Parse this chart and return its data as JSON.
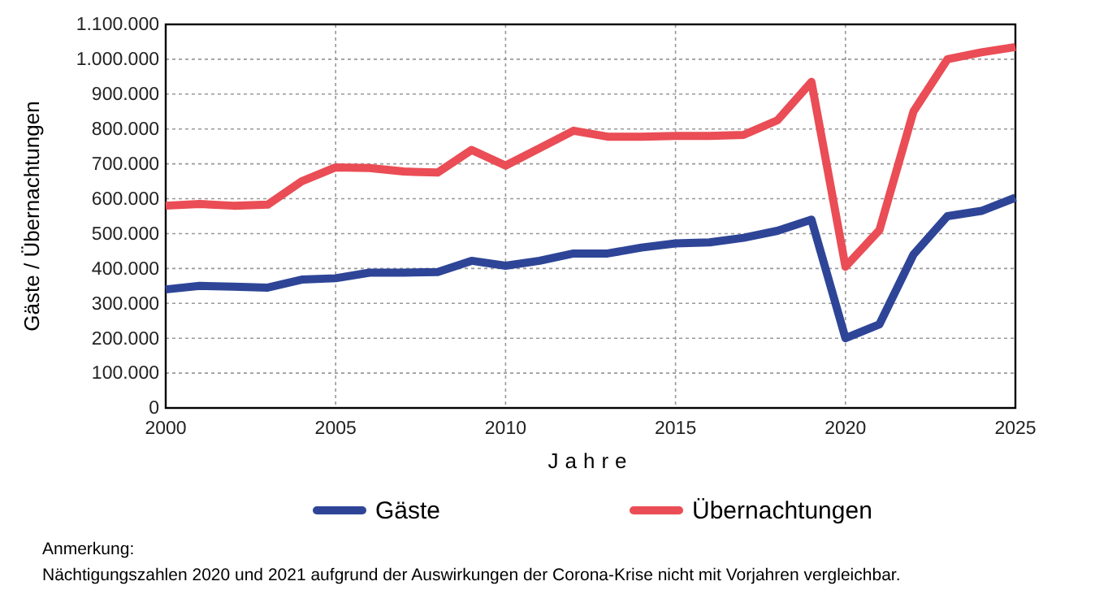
{
  "chart_data": {
    "type": "line",
    "xlabel": "Jahre",
    "ylabel": "Gäste / Übernachtungen",
    "x": [
      2000,
      2001,
      2002,
      2003,
      2004,
      2005,
      2006,
      2007,
      2008,
      2009,
      2010,
      2011,
      2012,
      2013,
      2014,
      2015,
      2016,
      2017,
      2018,
      2019,
      2020,
      2021,
      2022,
      2023,
      2024,
      2025
    ],
    "series": [
      {
        "name": "Gäste",
        "color": "#2e4597",
        "values": [
          340000,
          350000,
          348000,
          345000,
          368000,
          372000,
          388000,
          388000,
          390000,
          422000,
          408000,
          422000,
          443000,
          443000,
          460000,
          472000,
          475000,
          488000,
          508000,
          540000,
          200000,
          240000,
          440000,
          550000,
          565000,
          603000
        ]
      },
      {
        "name": "Übernachtungen",
        "color": "#ea4d55",
        "values": [
          580000,
          585000,
          580000,
          583000,
          650000,
          690000,
          688000,
          678000,
          675000,
          740000,
          695000,
          745000,
          795000,
          778000,
          778000,
          780000,
          780000,
          783000,
          825000,
          935000,
          405000,
          510000,
          850000,
          1000000,
          1020000,
          1035000
        ]
      }
    ],
    "xlim": [
      2000,
      2025
    ],
    "xticks": [
      2000,
      2005,
      2010,
      2015,
      2020,
      2025
    ],
    "ylim": [
      0,
      1100000
    ],
    "yticks": [
      {
        "value": 0,
        "label": "0"
      },
      {
        "value": 100000,
        "label": "100.000"
      },
      {
        "value": 200000,
        "label": "200.000"
      },
      {
        "value": 300000,
        "label": "300.000"
      },
      {
        "value": 400000,
        "label": "400.000"
      },
      {
        "value": 500000,
        "label": "500.000"
      },
      {
        "value": 600000,
        "label": "600.000"
      },
      {
        "value": 700000,
        "label": "700.000"
      },
      {
        "value": 800000,
        "label": "800.000"
      },
      {
        "value": 900000,
        "label": "900.000"
      },
      {
        "value": 1000000,
        "label": "1.000.000"
      },
      {
        "value": 1100000,
        "label": "1.100.000"
      }
    ],
    "grid": true,
    "legend": "bottom",
    "line_style": "solid",
    "marker": "none",
    "annotations": [
      "Anmerkung:",
      "Nächtigungszahlen 2020 und 2021 aufgrund der Auswirkungen der Corona-Krise nicht mit Vorjahren vergleichbar."
    ]
  }
}
